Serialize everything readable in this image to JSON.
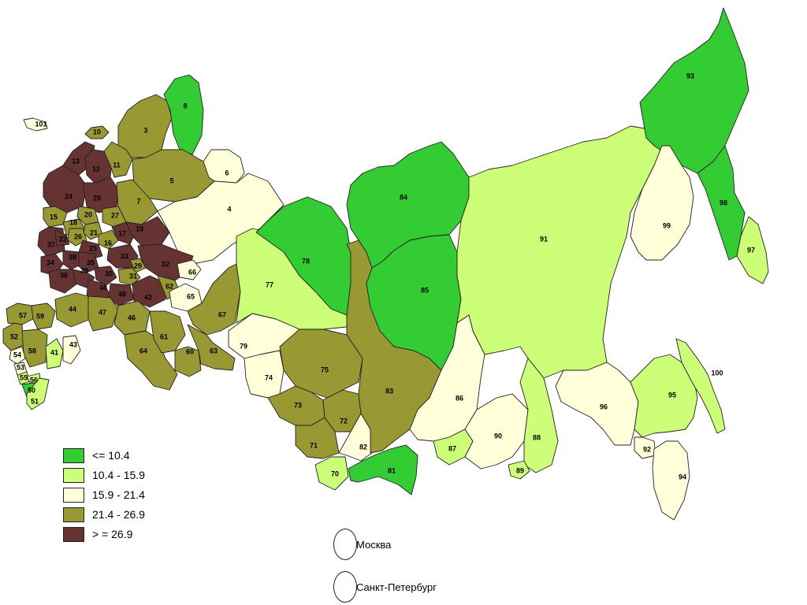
{
  "colors": {
    "c1": "#33cc33",
    "c2": "#ccff77",
    "c3": "#ffffd9",
    "c4": "#999933",
    "c5": "#663333"
  },
  "legend": [
    {
      "label": "<= 10.4",
      "class": "c1"
    },
    {
      "label": "10.4 - 15.9",
      "class": "c2"
    },
    {
      "label": "15.9 - 21.4",
      "class": "c3"
    },
    {
      "label": "21.4 - 26.9",
      "class": "c4"
    },
    {
      "label": "> = 26.9",
      "class": "c5"
    }
  ],
  "cities": {
    "moscow": "Москва",
    "spb": "Санкт-Петербург"
  },
  "regions": [
    {
      "code": "101",
      "class": "c3"
    },
    {
      "code": "3",
      "class": "c4"
    },
    {
      "code": "8",
      "class": "c1"
    },
    {
      "code": "10",
      "class": "c4"
    },
    {
      "code": "13",
      "class": "c5"
    },
    {
      "code": "12",
      "class": "c5"
    },
    {
      "code": "11",
      "class": "c4"
    },
    {
      "code": "5",
      "class": "c4"
    },
    {
      "code": "6",
      "class": "c3"
    },
    {
      "code": "24",
      "class": "c5"
    },
    {
      "code": "25",
      "class": "c5"
    },
    {
      "code": "7",
      "class": "c4"
    },
    {
      "code": "4",
      "class": "c3"
    },
    {
      "code": "15",
      "class": "c4"
    },
    {
      "code": "20",
      "class": "c4"
    },
    {
      "code": "27",
      "class": "c4"
    },
    {
      "code": "18",
      "class": "c4"
    },
    {
      "code": "21",
      "class": "c4"
    },
    {
      "code": "16",
      "class": "c4"
    },
    {
      "code": "17",
      "class": "c5"
    },
    {
      "code": "19",
      "class": "c5"
    },
    {
      "code": "37",
      "class": "c5"
    },
    {
      "code": "22",
      "class": "c5"
    },
    {
      "code": "26",
      "class": "c4"
    },
    {
      "code": "23",
      "class": "c5"
    },
    {
      "code": "33",
      "class": "c5"
    },
    {
      "code": "29",
      "class": "c4"
    },
    {
      "code": "32",
      "class": "c5"
    },
    {
      "code": "34",
      "class": "c5"
    },
    {
      "code": "38",
      "class": "c5"
    },
    {
      "code": "35",
      "class": "c5"
    },
    {
      "code": "36",
      "class": "c5"
    },
    {
      "code": "39",
      "class": "c5"
    },
    {
      "code": "30",
      "class": "c5"
    },
    {
      "code": "31",
      "class": "c4"
    },
    {
      "code": "40",
      "class": "c5"
    },
    {
      "code": "48",
      "class": "c5"
    },
    {
      "code": "42",
      "class": "c5"
    },
    {
      "code": "62",
      "class": "c4"
    },
    {
      "code": "66",
      "class": "c3"
    },
    {
      "code": "65",
      "class": "c3"
    },
    {
      "code": "67",
      "class": "c4"
    },
    {
      "code": "57",
      "class": "c4"
    },
    {
      "code": "59",
      "class": "c4"
    },
    {
      "code": "44",
      "class": "c4"
    },
    {
      "code": "47",
      "class": "c4"
    },
    {
      "code": "46",
      "class": "c4"
    },
    {
      "code": "52",
      "class": "c4"
    },
    {
      "code": "58",
      "class": "c4"
    },
    {
      "code": "41",
      "class": "c2"
    },
    {
      "code": "43",
      "class": "c3"
    },
    {
      "code": "54",
      "class": "c3"
    },
    {
      "code": "53",
      "class": "c3"
    },
    {
      "code": "55",
      "class": "c2"
    },
    {
      "code": "56",
      "class": "c2"
    },
    {
      "code": "50",
      "class": "c1"
    },
    {
      "code": "51",
      "class": "c2"
    },
    {
      "code": "64",
      "class": "c4"
    },
    {
      "code": "61",
      "class": "c4"
    },
    {
      "code": "60",
      "class": "c4"
    },
    {
      "code": "63",
      "class": "c4"
    },
    {
      "code": "77",
      "class": "c2"
    },
    {
      "code": "78",
      "class": "c1"
    },
    {
      "code": "79",
      "class": "c3"
    },
    {
      "code": "74",
      "class": "c3"
    },
    {
      "code": "75",
      "class": "c4"
    },
    {
      "code": "73",
      "class": "c4"
    },
    {
      "code": "72",
      "class": "c4"
    },
    {
      "code": "71",
      "class": "c4"
    },
    {
      "code": "70",
      "class": "c2"
    },
    {
      "code": "82",
      "class": "c3"
    },
    {
      "code": "81",
      "class": "c1"
    },
    {
      "code": "83",
      "class": "c4"
    },
    {
      "code": "84",
      "class": "c1"
    },
    {
      "code": "85",
      "class": "c1"
    },
    {
      "code": "91",
      "class": "c2"
    },
    {
      "code": "86",
      "class": "c3"
    },
    {
      "code": "87",
      "class": "c2"
    },
    {
      "code": "90",
      "class": "c3"
    },
    {
      "code": "88",
      "class": "c2"
    },
    {
      "code": "89",
      "class": "c2"
    },
    {
      "code": "93",
      "class": "c1"
    },
    {
      "code": "98",
      "class": "c1"
    },
    {
      "code": "97",
      "class": "c2"
    },
    {
      "code": "99",
      "class": "c3"
    },
    {
      "code": "96",
      "class": "c3"
    },
    {
      "code": "95",
      "class": "c2"
    },
    {
      "code": "92",
      "class": "c3"
    },
    {
      "code": "94",
      "class": "c3"
    },
    {
      "code": "100",
      "class": "c2"
    }
  ]
}
